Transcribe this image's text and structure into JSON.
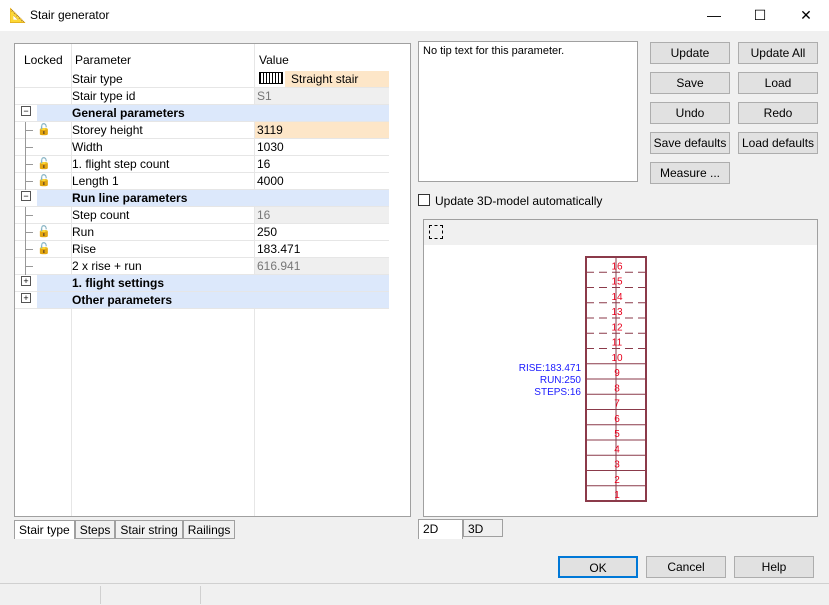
{
  "window": {
    "title": "Stair generator",
    "minimize": "—",
    "maximize": "☐",
    "close": "✕"
  },
  "grid": {
    "headers": [
      "Locked",
      "Parameter",
      "Value"
    ],
    "rows": [
      {
        "type": "item",
        "param": "Stair type",
        "value": "Straight stair",
        "value_style": "edit",
        "icon": "stair-type-icon"
      },
      {
        "type": "item",
        "param": "Stair type id",
        "value": "S1",
        "value_style": "readonly"
      },
      {
        "type": "group",
        "param": "General parameters",
        "expanded": true
      },
      {
        "type": "item",
        "param": "Storey height",
        "value": "3119",
        "value_style": "edit",
        "lock": true
      },
      {
        "type": "item",
        "param": "Width",
        "value": "1030"
      },
      {
        "type": "item",
        "param": "1. flight step count",
        "value": "16",
        "lock": true
      },
      {
        "type": "item",
        "param": "Length 1",
        "value": "4000",
        "lock": true
      },
      {
        "type": "group",
        "param": "Run line parameters",
        "expanded": true
      },
      {
        "type": "item",
        "param": "Step count",
        "value": "16",
        "value_style": "readonly"
      },
      {
        "type": "item",
        "param": "Run",
        "value": "250",
        "lock": true
      },
      {
        "type": "item",
        "param": "Rise",
        "value": "183.471",
        "lock": true
      },
      {
        "type": "item",
        "param": "2 x rise + run",
        "value": "616.941",
        "value_style": "readonly"
      },
      {
        "type": "group",
        "param": "1. flight settings",
        "expanded": false
      },
      {
        "type": "group",
        "param": "Other parameters",
        "expanded": false
      }
    ]
  },
  "left_tabs": [
    "Stair type",
    "Steps",
    "Stair string",
    "Railings"
  ],
  "tip_text": "No tip text for this parameter.",
  "buttons": {
    "update": "Update",
    "update_all": "Update All",
    "save": "Save",
    "load": "Load",
    "undo": "Undo",
    "redo": "Redo",
    "save_defaults": "Save defaults",
    "load_defaults": "Load defaults",
    "measure": "Measure ..."
  },
  "auto_update": {
    "label": "Update 3D-model automatically",
    "checked": false
  },
  "drawing": {
    "steps": 16,
    "annotations": [
      "RISE:183.471",
      "RUN:250",
      "STEPS:16"
    ],
    "colors": {
      "outline": "#8b3a4a",
      "numbers": "#e8001c",
      "annotation": "#1a1aff"
    }
  },
  "view_tabs": [
    "2D",
    "3D"
  ],
  "footer": {
    "ok": "OK",
    "cancel": "Cancel",
    "help": "Help"
  }
}
